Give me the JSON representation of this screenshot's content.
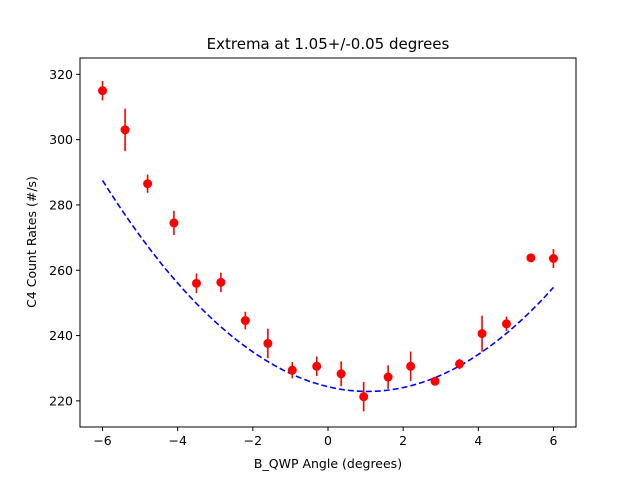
{
  "chart_data": {
    "type": "scatter",
    "title": "Extrema at 1.05+/-0.05 degrees",
    "xlabel": "B_QWP Angle (degrees)",
    "ylabel": "C4 Count Rates (#/s)",
    "xlim": [
      -6.6,
      6.6
    ],
    "ylim": [
      212,
      325
    ],
    "xticks": [
      -6,
      -4,
      -2,
      0,
      2,
      4,
      6
    ],
    "xtick_labels": [
      "−6",
      "−4",
      "−2",
      "0",
      "2",
      "4",
      "6"
    ],
    "yticks": [
      220,
      240,
      260,
      280,
      300,
      320
    ],
    "ytick_labels": [
      "220",
      "240",
      "260",
      "280",
      "300",
      "320"
    ],
    "grid": false,
    "series": [
      {
        "kind": "errorbar-points",
        "color": "#ff0000",
        "points": [
          {
            "x": -6.0,
            "y": 315.0,
            "err": 3.0
          },
          {
            "x": -5.4,
            "y": 303.0,
            "err": 6.5
          },
          {
            "x": -4.8,
            "y": 286.5,
            "err": 2.8
          },
          {
            "x": -4.1,
            "y": 274.5,
            "err": 3.7
          },
          {
            "x": -3.5,
            "y": 256.0,
            "err": 3.0
          },
          {
            "x": -2.85,
            "y": 256.3,
            "err": 3.0
          },
          {
            "x": -2.2,
            "y": 244.6,
            "err": 2.7
          },
          {
            "x": -1.6,
            "y": 237.6,
            "err": 4.5
          },
          {
            "x": -0.95,
            "y": 229.4,
            "err": 2.5
          },
          {
            "x": -0.3,
            "y": 230.6,
            "err": 3.0
          },
          {
            "x": 0.35,
            "y": 228.3,
            "err": 3.8
          },
          {
            "x": 0.95,
            "y": 221.3,
            "err": 4.5
          },
          {
            "x": 1.6,
            "y": 227.3,
            "err": 3.6
          },
          {
            "x": 2.2,
            "y": 230.6,
            "err": 4.5
          },
          {
            "x": 2.85,
            "y": 226.0,
            "err": 0.8
          },
          {
            "x": 3.5,
            "y": 231.3,
            "err": 1.6
          },
          {
            "x": 4.1,
            "y": 240.6,
            "err": 5.5
          },
          {
            "x": 4.75,
            "y": 243.6,
            "err": 2.2
          },
          {
            "x": 5.4,
            "y": 263.8,
            "err": 0.8
          },
          {
            "x": 6.0,
            "y": 263.6,
            "err": 2.9
          }
        ]
      },
      {
        "kind": "fit-curve",
        "color": "#0000ff",
        "style": "dashed",
        "model": {
          "form": "a*(x-x0)^2+c",
          "a": 1.3,
          "x0": 1.05,
          "c": 222.9
        },
        "x_range": [
          -6.0,
          6.0
        ]
      }
    ]
  }
}
